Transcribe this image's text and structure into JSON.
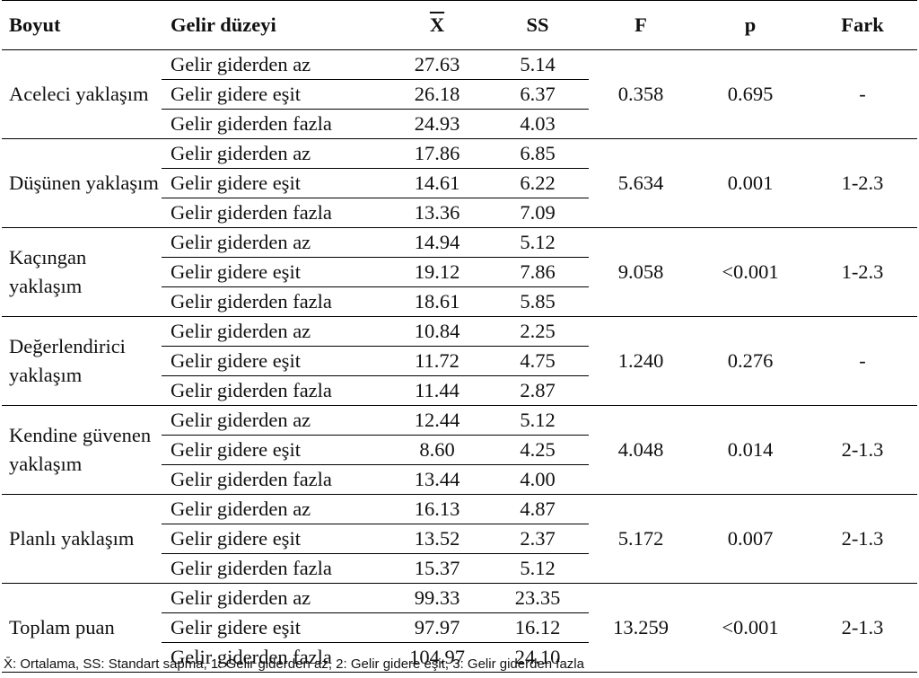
{
  "table": {
    "headers": {
      "boyut": "Boyut",
      "gelir": "Gelir düzeyi",
      "mean": "X",
      "ss": "SS",
      "f": "F",
      "p": "p",
      "fark": "Fark"
    },
    "groups": [
      {
        "dimension": "Aceleci yaklaşım",
        "rows": [
          {
            "level": "Gelir giderden az",
            "mean": "27.63",
            "ss": "5.14"
          },
          {
            "level": "Gelir gidere eşit",
            "mean": "26.18",
            "ss": "6.37"
          },
          {
            "level": "Gelir giderden fazla",
            "mean": "24.93",
            "ss": "4.03"
          }
        ],
        "f": "0.358",
        "p": "0.695",
        "fark": "-"
      },
      {
        "dimension": "Düşünen yaklaşım",
        "rows": [
          {
            "level": "Gelir giderden az",
            "mean": "17.86",
            "ss": "6.85"
          },
          {
            "level": "Gelir gidere eşit",
            "mean": "14.61",
            "ss": "6.22"
          },
          {
            "level": "Gelir giderden fazla",
            "mean": "13.36",
            "ss": "7.09"
          }
        ],
        "f": "5.634",
        "p": "0.001",
        "fark": "1-2.3"
      },
      {
        "dimension": "Kaçıngan yaklaşım",
        "rows": [
          {
            "level": "Gelir giderden az",
            "mean": "14.94",
            "ss": "5.12"
          },
          {
            "level": "Gelir gidere eşit",
            "mean": "19.12",
            "ss": "7.86"
          },
          {
            "level": "Gelir giderden fazla",
            "mean": "18.61",
            "ss": "5.85"
          }
        ],
        "f": "9.058",
        "p": "<0.001",
        "fark": "1-2.3"
      },
      {
        "dimension": "Değerlendirici yaklaşım",
        "rows": [
          {
            "level": "Gelir giderden az",
            "mean": "10.84",
            "ss": "2.25"
          },
          {
            "level": "Gelir gidere eşit",
            "mean": "11.72",
            "ss": "4.75"
          },
          {
            "level": "Gelir giderden fazla",
            "mean": "11.44",
            "ss": "2.87"
          }
        ],
        "f": "1.240",
        "p": "0.276",
        "fark": "-"
      },
      {
        "dimension": "Kendine güvenen yaklaşım",
        "rows": [
          {
            "level": "Gelir giderden az",
            "mean": "12.44",
            "ss": "5.12"
          },
          {
            "level": "Gelir gidere eşit",
            "mean": "8.60",
            "ss": "4.25"
          },
          {
            "level": "Gelir giderden fazla",
            "mean": "13.44",
            "ss": "4.00"
          }
        ],
        "f": "4.048",
        "p": "0.014",
        "fark": "2-1.3"
      },
      {
        "dimension": "Planlı yaklaşım",
        "rows": [
          {
            "level": "Gelir giderden az",
            "mean": "16.13",
            "ss": "4.87"
          },
          {
            "level": "Gelir gidere eşit",
            "mean": "13.52",
            "ss": "2.37"
          },
          {
            "level": "Gelir giderden fazla",
            "mean": "15.37",
            "ss": "5.12"
          }
        ],
        "f": "5.172",
        "p": "0.007",
        "fark": "2-1.3"
      },
      {
        "dimension": "Toplam puan",
        "rows": [
          {
            "level": "Gelir giderden az",
            "mean": "99.33",
            "ss": "23.35"
          },
          {
            "level": "Gelir gidere eşit",
            "mean": "97.97",
            "ss": "16.12"
          },
          {
            "level": "Gelir giderden fazla",
            "mean": "104.97",
            "ss": "24.10"
          }
        ],
        "f": "13.259",
        "p": "<0.001",
        "fark": "2-1.3"
      }
    ]
  },
  "footnote": "X̄: Ortalama, SS: Standart sapma, 1: Gelir giderden az, 2: Gelir gidere eşit, 3: Gelir giderden fazla"
}
